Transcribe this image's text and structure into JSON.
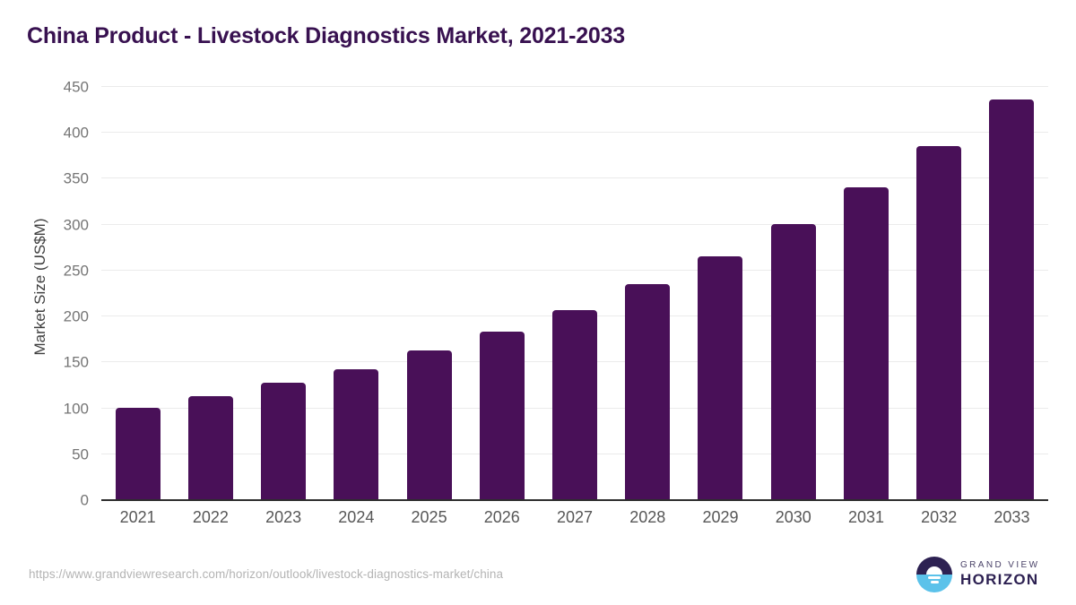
{
  "chart": {
    "title": "China Product - Livestock Diagnostics Market, 2021-2033",
    "y_axis_label": "Market Size (US$M)"
  },
  "chart_data": {
    "type": "bar",
    "title": "China Product - Livestock Diagnostics Market, 2021-2033",
    "xlabel": "",
    "ylabel": "Market Size (US$M)",
    "categories": [
      "2021",
      "2022",
      "2023",
      "2024",
      "2025",
      "2026",
      "2027",
      "2028",
      "2029",
      "2030",
      "2031",
      "2032",
      "2033"
    ],
    "values": [
      101,
      113,
      128,
      143,
      163,
      184,
      207,
      235,
      266,
      301,
      341,
      386,
      436
    ],
    "ylim": [
      0,
      450
    ],
    "yticks": [
      0,
      50,
      100,
      150,
      200,
      250,
      300,
      350,
      400,
      450
    ],
    "grid": "horizontal",
    "legend": "none",
    "bar_color": "#491058"
  },
  "colors": {
    "bar": "#491058",
    "title": "#381150",
    "logo_navy": "#2d2152",
    "logo_blue": "#5bc2ea"
  },
  "footer": {
    "source_url": "https://www.grandviewresearch.com/horizon/outlook/livestock-diagnostics-market/china",
    "logo": {
      "top_text": "GRAND VIEW",
      "bottom_text": "HORIZON"
    }
  }
}
